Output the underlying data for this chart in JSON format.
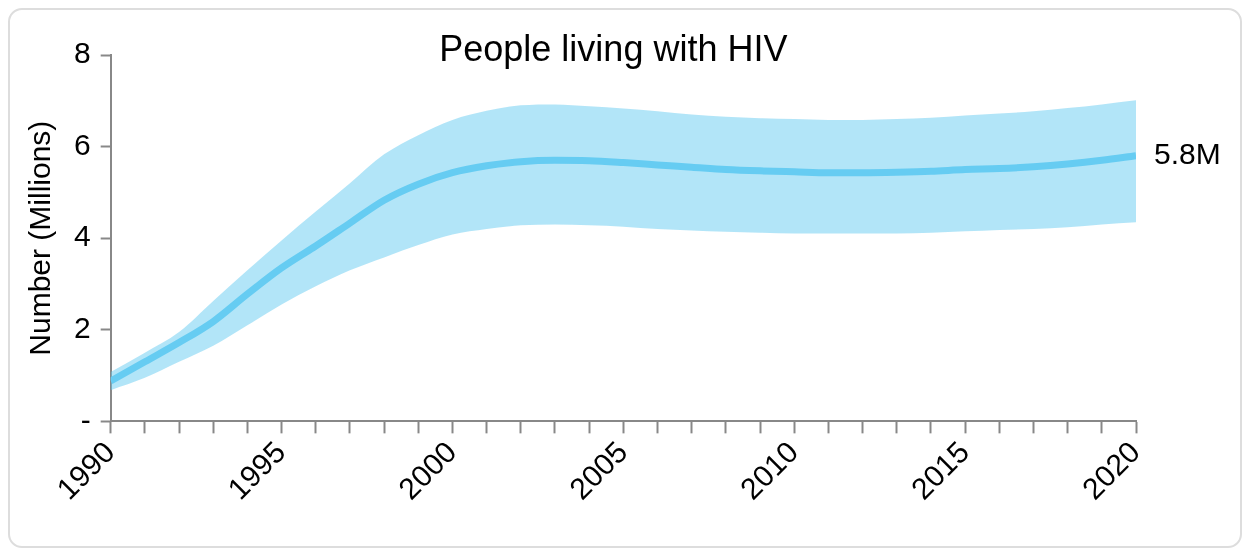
{
  "chart_data": {
    "type": "line",
    "title": "People living with HIV",
    "ylabel": "Number (Millions)",
    "x": [
      1990,
      1991,
      1992,
      1993,
      1994,
      1995,
      1996,
      1997,
      1998,
      1999,
      2000,
      2001,
      2002,
      2003,
      2004,
      2005,
      2006,
      2007,
      2008,
      2009,
      2010,
      2011,
      2012,
      2013,
      2014,
      2015,
      2016,
      2017,
      2018,
      2019,
      2020
    ],
    "series": [
      {
        "color": "#66ccf2",
        "values": [
          0.88,
          1.3,
          1.72,
          2.18,
          2.78,
          3.35,
          3.83,
          4.33,
          4.83,
          5.18,
          5.43,
          5.58,
          5.67,
          5.7,
          5.69,
          5.65,
          5.6,
          5.55,
          5.5,
          5.47,
          5.45,
          5.43,
          5.43,
          5.44,
          5.46,
          5.5,
          5.52,
          5.56,
          5.62,
          5.7,
          5.8
        ],
        "upper": [
          1.08,
          1.5,
          1.95,
          2.63,
          3.3,
          3.95,
          4.58,
          5.2,
          5.83,
          6.25,
          6.58,
          6.78,
          6.9,
          6.92,
          6.88,
          6.83,
          6.77,
          6.7,
          6.65,
          6.62,
          6.6,
          6.58,
          6.58,
          6.6,
          6.63,
          6.68,
          6.72,
          6.77,
          6.84,
          6.92,
          7.01
        ],
        "lower": [
          0.68,
          0.95,
          1.3,
          1.65,
          2.1,
          2.55,
          2.95,
          3.3,
          3.58,
          3.85,
          4.08,
          4.2,
          4.28,
          4.3,
          4.28,
          4.25,
          4.2,
          4.17,
          4.14,
          4.12,
          4.1,
          4.1,
          4.1,
          4.1,
          4.12,
          4.15,
          4.18,
          4.2,
          4.24,
          4.3,
          4.35
        ]
      }
    ],
    "annotations": [
      {
        "text": "5.8M",
        "x": 2020,
        "y": 5.8
      }
    ],
    "xlim": [
      1990,
      2020
    ],
    "xticks": [
      1990,
      {
        "value": 1991,
        "label": null
      },
      {
        "value": 1992,
        "label": null
      },
      {
        "value": 1993,
        "label": null
      },
      {
        "value": 1994,
        "label": null
      },
      1995,
      {
        "value": 1996,
        "label": null
      },
      {
        "value": 1997,
        "label": null
      },
      {
        "value": 1998,
        "label": null
      },
      {
        "value": 1999,
        "label": null
      },
      2000,
      {
        "value": 2001,
        "label": null
      },
      {
        "value": 2002,
        "label": null
      },
      {
        "value": 2003,
        "label": null
      },
      {
        "value": 2004,
        "label": null
      },
      2005,
      {
        "value": 2006,
        "label": null
      },
      {
        "value": 2007,
        "label": null
      },
      {
        "value": 2008,
        "label": null
      },
      {
        "value": 2009,
        "label": null
      },
      2010,
      {
        "value": 2011,
        "label": null
      },
      {
        "value": 2012,
        "label": null
      },
      {
        "value": 2013,
        "label": null
      },
      {
        "value": 2014,
        "label": null
      },
      2015,
      {
        "value": 2016,
        "label": null
      },
      {
        "value": 2017,
        "label": null
      },
      {
        "value": 2018,
        "label": null
      },
      {
        "value": 2019,
        "label": null
      },
      2020
    ],
    "ylim": [
      0,
      8
    ],
    "yticks": [
      {
        "value": 0,
        "label": "-"
      },
      2,
      4,
      6,
      8
    ],
    "grid": false,
    "legend": false,
    "marker": "none",
    "line_style": "solid"
  }
}
